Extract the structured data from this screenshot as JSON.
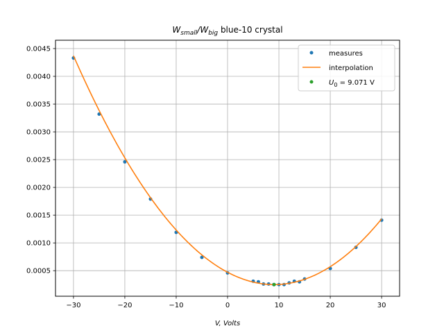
{
  "chart_data": {
    "type": "scatter",
    "title": {
      "ratio_num": "W",
      "num_sub": "small",
      "slash": "/",
      "ratio_den": "W",
      "den_sub": "big",
      "suffix": " blue-10 crystal"
    },
    "xlabel": "V, Volts",
    "ylabel": "",
    "xlim": [
      -33.5,
      33.5
    ],
    "ylim": [
      4e-05,
      0.00465
    ],
    "x_ticks": [
      -30,
      -20,
      -10,
      0,
      10,
      20,
      30
    ],
    "x_tick_labels": [
      "−30",
      "−20",
      "−10",
      "0",
      "10",
      "20",
      "30"
    ],
    "y_ticks": [
      0.0005,
      0.001,
      0.0015,
      0.002,
      0.0025,
      0.003,
      0.0035,
      0.004,
      0.0045
    ],
    "y_tick_labels": [
      "0.0005",
      "0.0010",
      "0.0015",
      "0.0020",
      "0.0025",
      "0.0030",
      "0.0035",
      "0.0040",
      "0.0045"
    ],
    "grid": true,
    "legend_position": "top-right",
    "series": [
      {
        "name": "measures",
        "kind": "points",
        "color": "#1f77b4",
        "x": [
          -30,
          -25,
          -20,
          -15,
          -10,
          -5,
          0,
          5,
          6,
          7,
          8,
          9,
          10,
          11,
          12,
          13,
          14,
          15,
          20,
          25,
          30
        ],
        "y": [
          0.00433,
          0.00332,
          0.00246,
          0.00179,
          0.00119,
          0.00074,
          0.00046,
          0.00031,
          0.0003,
          0.00026,
          0.00026,
          0.00025,
          0.00025,
          0.00025,
          0.00028,
          0.00031,
          0.0003,
          0.00035,
          0.00054,
          0.00092,
          0.00141
        ]
      },
      {
        "name": "interpolation",
        "kind": "line",
        "color": "#ff7f0e",
        "quadratic": {
          "a": 2.7e-06,
          "vertex_x": 9.071,
          "vertex_y": 0.00025
        },
        "x_range": [
          -30,
          30
        ]
      },
      {
        "name_prefix": "U",
        "name_sub": "0",
        "name_suffix": " = 9.071 V",
        "kind": "points",
        "color": "#2ca02c",
        "x": [
          9.071
        ],
        "y": [
          0.00025
        ]
      }
    ]
  }
}
